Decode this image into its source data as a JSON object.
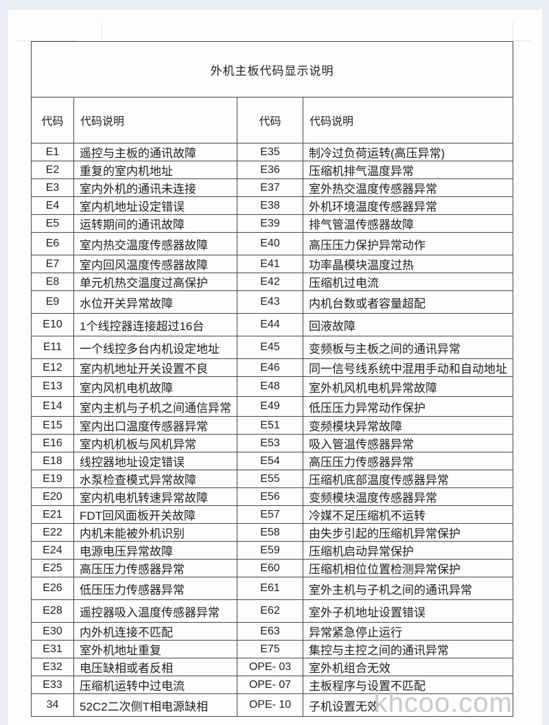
{
  "page": {
    "title": "外机主板代码显示说明",
    "watermark": "khcoo.com"
  },
  "table": {
    "headers": {
      "code": "代码",
      "description": "代码说明"
    },
    "rows": [
      {
        "left_code": "E1",
        "left_desc": "遥控与主板的通讯故障",
        "right_code": "E35",
        "right_desc": "制冷过负荷运转(高压异常)"
      },
      {
        "left_code": "E2",
        "left_desc": "重复的室内机地址",
        "right_code": "E36",
        "right_desc": "压缩机排气温度异常"
      },
      {
        "left_code": "E3",
        "left_desc": "室内外机的通讯未连接",
        "right_code": "E37",
        "right_desc": "室外热交温度传感器异常"
      },
      {
        "left_code": "E4",
        "left_desc": "室内机地址设定错误",
        "right_code": "E38",
        "right_desc": "外机环境温度传感器异常"
      },
      {
        "left_code": "E5",
        "left_desc": "运转期间的通讯故障",
        "right_code": "E39",
        "right_desc": "排气管温传感器故障"
      },
      {
        "left_code": "E6",
        "left_desc": "室内热交温度传感器故障",
        "right_code": "E40",
        "right_desc": "高压压力保护异常动作"
      },
      {
        "left_code": "E7",
        "left_desc": "室内回风温度传感器故障",
        "right_code": "E41",
        "right_desc": "功率晶模块温度过热"
      },
      {
        "left_code": "E8",
        "left_desc": "单元机热交温度过高保护",
        "right_code": "E42",
        "right_desc": "压缩机过电流"
      },
      {
        "left_code": "E9",
        "left_desc": "水位开关异常故障",
        "right_code": "E43",
        "right_desc": "内机台数或者容量超配"
      },
      {
        "left_code": "E10",
        "left_desc": "1个线控器连接超过16台",
        "right_code": "E44",
        "right_desc": "回液故障"
      },
      {
        "left_code": "E11",
        "left_desc": "一个线控多台内机设定地址",
        "right_code": "E45",
        "right_desc": "变频板与主板之间的通讯异常"
      },
      {
        "left_code": "E12",
        "left_desc": "室内机地址开关设置不良",
        "right_code": "E46",
        "right_desc": "同一信号线系统中混用手动和自动地址"
      },
      {
        "left_code": "E13",
        "left_desc": "室内风机电机故障",
        "right_code": "E48",
        "right_desc": "室外机风机电机异常故障"
      },
      {
        "left_code": "E14",
        "left_desc": "室内主机与子机之间通信异常",
        "right_code": "E49",
        "right_desc": "低压压力异常动作保护"
      },
      {
        "left_code": "E15",
        "left_desc": "室内出口温度传感器异常",
        "right_code": "E51",
        "right_desc": "变频模块异常故障"
      },
      {
        "left_code": "E16",
        "left_desc": "室内机机板与风机异常",
        "right_code": "E53",
        "right_desc": "吸入管温传感器异常"
      },
      {
        "left_code": "E18",
        "left_desc": "线控器地址设定错误",
        "right_code": "E54",
        "right_desc": "高压压力传感器异常"
      },
      {
        "left_code": "E19",
        "left_desc": "水泵检查模式异常故障",
        "right_code": "E55",
        "right_desc": "压缩机底部温度传感器异常"
      },
      {
        "left_code": "E20",
        "left_desc": "室内机电机转速异常故障",
        "right_code": "E56",
        "right_desc": "变频模块温度传感器异常"
      },
      {
        "left_code": "E21",
        "left_desc": "FDT回风面板开关故障",
        "right_code": "E57",
        "right_desc": "冷媒不足压缩机不运转"
      },
      {
        "left_code": "E22",
        "left_desc": "内机未能被外机识别",
        "right_code": "E58",
        "right_desc": "由失步引起的压缩机异常保护"
      },
      {
        "left_code": "E24",
        "left_desc": "电源电压异常故障",
        "right_code": "E59",
        "right_desc": "压缩机启动异常保护"
      },
      {
        "left_code": "E25",
        "left_desc": "高压压力传感器异常",
        "right_code": "E60",
        "right_desc": "压缩机相位位置检测异常保护"
      },
      {
        "left_code": "E26",
        "left_desc": "低压压力传感器异常",
        "right_code": "E61",
        "right_desc": "室外主机与子机之间的通讯异常"
      },
      {
        "left_code": "E28",
        "left_desc": "遥控器吸入温度传感器异常",
        "right_code": "E62",
        "right_desc": "室外子机地址设置错误"
      },
      {
        "left_code": "E30",
        "left_desc": "内外机连接不匹配",
        "right_code": "E63",
        "right_desc": "异常紧急停止运行"
      },
      {
        "left_code": "E31",
        "left_desc": "室外机地址重复",
        "right_code": "E75",
        "right_desc": "集控与主控之间的通讯异常"
      },
      {
        "left_code": "E32",
        "left_desc": "电压缺相或者反相",
        "right_code": "OPE- 03",
        "right_desc": "室外机组合无效"
      },
      {
        "left_code": "E33",
        "left_desc": "压缩机运转中过电流",
        "right_code": "OPE- 07",
        "right_desc": "主板程序与设置不匹配"
      },
      {
        "left_code": "34",
        "left_desc": "52C2二次侧T相电源缺相",
        "right_code": "OPE- 10",
        "right_desc": "子机设置无效"
      }
    ]
  },
  "colors": {
    "background": "#e9edf3",
    "page": "#fdfdfe",
    "border": "#454545",
    "text": "#1e1e1e",
    "watermark": "#c8cacd"
  }
}
